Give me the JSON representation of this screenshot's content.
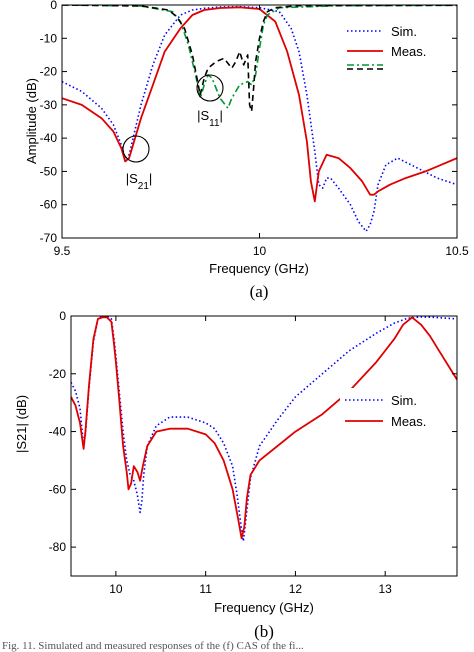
{
  "bottom_text": "Fig. 11. Simulated and measured responses of the (f) CAS of the fi...",
  "chart_data": [
    {
      "type": "line",
      "panel": "a",
      "caption": "(a)",
      "xlabel": "Frequency (GHz)",
      "ylabel": "Amplitude (dB)",
      "xlim": [
        9.5,
        10.5
      ],
      "ylim": [
        -70,
        0
      ],
      "xticks": [
        "9.5",
        "10",
        "10.5"
      ],
      "yticks": [
        "0",
        "-10",
        "-20",
        "-30",
        "-40",
        "-50",
        "-60",
        "-70"
      ],
      "grid": false,
      "legend_position": "top-right",
      "legend": [
        "Sim.",
        "Meas."
      ],
      "annotations": [
        "|S21|",
        "|S11|"
      ],
      "series": [
        {
          "name": "Sim.",
          "quantity": "|S21|",
          "color": "#0000ff",
          "style": "dotted",
          "x": [
            9.5,
            9.55,
            9.6,
            9.63,
            9.65,
            9.66,
            9.67,
            9.68,
            9.7,
            9.73,
            9.76,
            9.8,
            9.83,
            9.86,
            9.9,
            9.95,
            10.0,
            10.05,
            10.08,
            10.1,
            10.12,
            10.14,
            10.15,
            10.16,
            10.17,
            10.18,
            10.2,
            10.23,
            10.25,
            10.27,
            10.28,
            10.29,
            10.3,
            10.32,
            10.35,
            10.4,
            10.45,
            10.5
          ],
          "y": [
            -23,
            -26,
            -31,
            -36,
            -42,
            -46,
            -45,
            -40,
            -30,
            -18,
            -9,
            -3,
            -1.5,
            -1,
            -0.6,
            -0.5,
            -0.8,
            -2,
            -7,
            -14,
            -27,
            -44,
            -54,
            -55,
            -52,
            -52,
            -55,
            -60,
            -65,
            -68,
            -66,
            -62,
            -54,
            -48,
            -46,
            -49,
            -52,
            -54
          ]
        },
        {
          "name": "Meas.",
          "quantity": "|S21|",
          "color": "#e00000",
          "style": "solid",
          "x": [
            9.5,
            9.55,
            9.6,
            9.63,
            9.65,
            9.66,
            9.67,
            9.68,
            9.7,
            9.73,
            9.76,
            9.8,
            9.83,
            9.86,
            9.9,
            9.95,
            10.0,
            10.04,
            10.07,
            10.1,
            10.12,
            10.13,
            10.14,
            10.15,
            10.17,
            10.2,
            10.23,
            10.26,
            10.28,
            10.29,
            10.3,
            10.33,
            10.37,
            10.42,
            10.46,
            10.5
          ],
          "y": [
            -28,
            -30,
            -34,
            -38,
            -43,
            -47,
            -46,
            -42,
            -34,
            -24,
            -14,
            -7,
            -3,
            -1.5,
            -0.9,
            -0.7,
            -1.2,
            -5,
            -14,
            -27,
            -41,
            -53,
            -59,
            -50,
            -45,
            -46,
            -49,
            -53,
            -57,
            -57,
            -56,
            -54,
            -52,
            -50,
            -48,
            -46
          ]
        },
        {
          "name": "",
          "quantity": "|S11| simulated",
          "color": "#009933",
          "style": "dashdot",
          "x": [
            9.5,
            9.7,
            9.78,
            9.8,
            9.82,
            9.84,
            9.85,
            9.86,
            9.87,
            9.88,
            9.9,
            9.92,
            9.93,
            9.95,
            9.97,
            9.98,
            9.99,
            10.0,
            10.01,
            10.02,
            10.05,
            10.2,
            10.5
          ],
          "y": [
            0,
            -0.3,
            -2,
            -5,
            -12,
            -22,
            -28,
            -24,
            -21,
            -22,
            -28,
            -31,
            -28,
            -24,
            -23,
            -24,
            -21,
            -13,
            -6,
            -3,
            -0.8,
            -0.2,
            -0.1
          ]
        },
        {
          "name": "",
          "quantity": "|S11| measured",
          "color": "#000000",
          "style": "dashed",
          "x": [
            9.5,
            9.7,
            9.77,
            9.79,
            9.81,
            9.83,
            9.84,
            9.85,
            9.86,
            9.87,
            9.89,
            9.91,
            9.93,
            9.94,
            9.95,
            9.96,
            9.97,
            9.975,
            9.98,
            9.985,
            9.99,
            10.0,
            10.01,
            10.02,
            10.04,
            10.1,
            10.5
          ],
          "y": [
            0,
            -0.3,
            -1.5,
            -3.5,
            -7,
            -15,
            -21,
            -27,
            -22,
            -19,
            -17,
            -16,
            -19,
            -17,
            -14,
            -18,
            -15,
            -30,
            -32,
            -25,
            -17,
            -10,
            -5,
            -2,
            -0.8,
            -0.2,
            -0.1
          ]
        }
      ]
    },
    {
      "type": "line",
      "panel": "b",
      "caption": "(b)",
      "xlabel": "Frequency (GHz)",
      "ylabel": "|S21| (dB)",
      "xlim": [
        9.5,
        13.8
      ],
      "ylim": [
        -90,
        0
      ],
      "xticks": [
        "10",
        "11",
        "12",
        "13"
      ],
      "yticks": [
        "0",
        "-20",
        "-40",
        "-60",
        "-80"
      ],
      "grid": false,
      "legend_position": "center-right",
      "legend": [
        "Sim.",
        "Meas."
      ],
      "series": [
        {
          "name": "Sim.",
          "color": "#0000ff",
          "style": "dotted",
          "x": [
            9.5,
            9.55,
            9.6,
            9.64,
            9.66,
            9.7,
            9.75,
            9.8,
            9.85,
            9.9,
            9.95,
            9.98,
            10.0,
            10.04,
            10.08,
            10.12,
            10.16,
            10.2,
            10.24,
            10.27,
            10.29,
            10.31,
            10.35,
            10.45,
            10.6,
            10.8,
            11.0,
            11.1,
            11.2,
            11.3,
            11.35,
            11.4,
            11.42,
            11.45,
            11.5,
            11.6,
            11.8,
            12.0,
            12.3,
            12.6,
            12.9,
            13.1,
            13.25,
            13.4,
            13.55,
            13.7,
            13.8
          ],
          "y": [
            -23,
            -26,
            -32,
            -45,
            -41,
            -25,
            -9,
            -1,
            0,
            0,
            -1,
            -8,
            -14,
            -27,
            -40,
            -50,
            -55,
            -57,
            -62,
            -68,
            -64,
            -55,
            -45,
            -38,
            -35,
            -35,
            -37,
            -39,
            -44,
            -52,
            -62,
            -74,
            -78,
            -70,
            -56,
            -45,
            -36,
            -28,
            -20,
            -12,
            -6,
            -2.5,
            -0.8,
            -0.3,
            -0.5,
            -0.8,
            -1
          ]
        },
        {
          "name": "Meas.",
          "color": "#e00000",
          "style": "solid",
          "x": [
            9.5,
            9.55,
            9.6,
            9.64,
            9.66,
            9.7,
            9.75,
            9.8,
            9.85,
            9.9,
            9.95,
            9.98,
            10.0,
            10.04,
            10.08,
            10.12,
            10.14,
            10.17,
            10.2,
            10.24,
            10.27,
            10.3,
            10.35,
            10.45,
            10.6,
            10.8,
            11.0,
            11.1,
            11.2,
            11.3,
            11.36,
            11.4,
            11.43,
            11.46,
            11.5,
            11.6,
            11.8,
            12.0,
            12.3,
            12.6,
            12.9,
            13.1,
            13.2,
            13.3,
            13.4,
            13.5,
            13.6,
            13.8
          ],
          "y": [
            -28,
            -31,
            -37,
            -46,
            -40,
            -24,
            -8,
            -1,
            -0.5,
            -0.5,
            -2,
            -10,
            -16,
            -30,
            -45,
            -54,
            -60,
            -58,
            -52,
            -54,
            -57,
            -52,
            -45,
            -40,
            -39,
            -39,
            -41,
            -44,
            -50,
            -60,
            -70,
            -77,
            -73,
            -63,
            -55,
            -50,
            -45,
            -40,
            -34,
            -26,
            -16,
            -8,
            -3,
            -0.5,
            -3,
            -7,
            -12,
            -22
          ]
        }
      ]
    }
  ]
}
